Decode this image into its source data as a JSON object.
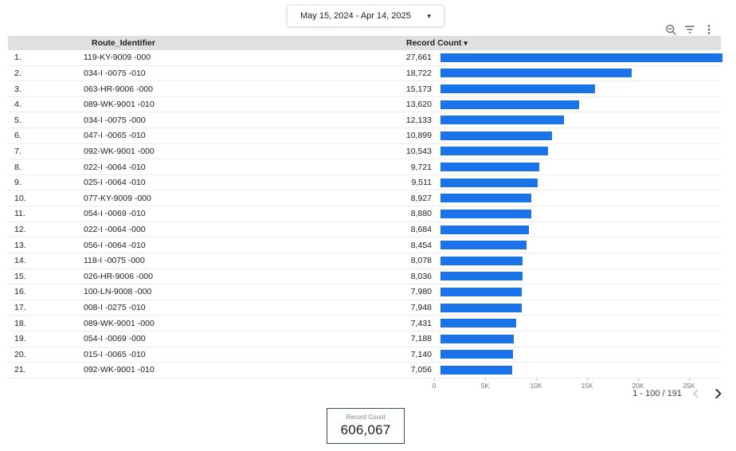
{
  "colors": {
    "bar": "#1a73e8",
    "table_header_bg": "#e0e0e0",
    "row_border": "#ececec",
    "text_primary": "#202124",
    "text_secondary": "#5f6368",
    "axis_text": "#757575",
    "scorecard_border": "#37474f"
  },
  "date_range_control": {
    "value": "May 15, 2024 - Apr 14, 2025",
    "caret": "▾"
  },
  "toolbar": {
    "icons": [
      "zoom-icon",
      "filter-icon",
      "more-options-icon"
    ]
  },
  "table": {
    "header": {
      "route": "Route_Identifier",
      "count": "Record Count",
      "sort_caret": "▾",
      "sort": "descending"
    },
    "rows": [
      {
        "index": "1.",
        "route": "119-KY-9009 -000",
        "count": "27,661",
        "value": 27661
      },
      {
        "index": "2.",
        "route": "034-I -0075 -010",
        "count": "18,722",
        "value": 18722
      },
      {
        "index": "3.",
        "route": "063-HR-9006 -000",
        "count": "15,173",
        "value": 15173
      },
      {
        "index": "4.",
        "route": "089-WK-9001 -010",
        "count": "13,620",
        "value": 13620
      },
      {
        "index": "5.",
        "route": "034-I -0075 -000",
        "count": "12,133",
        "value": 12133
      },
      {
        "index": "6.",
        "route": "047-I -0065 -010",
        "count": "10,899",
        "value": 10899
      },
      {
        "index": "7.",
        "route": "092-WK-9001 -000",
        "count": "10,543",
        "value": 10543
      },
      {
        "index": "8.",
        "route": "022-I -0064 -010",
        "count": "9,721",
        "value": 9721
      },
      {
        "index": "9.",
        "route": "025-I -0064 -010",
        "count": "9,511",
        "value": 9511
      },
      {
        "index": "10.",
        "route": "077-KY-9009 -000",
        "count": "8,927",
        "value": 8927
      },
      {
        "index": "11.",
        "route": "054-I -0069 -010",
        "count": "8,880",
        "value": 8880
      },
      {
        "index": "12.",
        "route": "022-I -0064 -000",
        "count": "8,684",
        "value": 8684
      },
      {
        "index": "13.",
        "route": "056-I -0064 -010",
        "count": "8,454",
        "value": 8454
      },
      {
        "index": "14.",
        "route": "118-I -0075 -000",
        "count": "8,078",
        "value": 8078
      },
      {
        "index": "15.",
        "route": "026-HR-9006 -000",
        "count": "8,036",
        "value": 8036
      },
      {
        "index": "16.",
        "route": "100-LN-9008 -000",
        "count": "7,980",
        "value": 7980
      },
      {
        "index": "17.",
        "route": "008-I -0275 -010",
        "count": "7,948",
        "value": 7948
      },
      {
        "index": "18.",
        "route": "089-WK-9001 -000",
        "count": "7,431",
        "value": 7431
      },
      {
        "index": "19.",
        "route": "054-I -0069 -000",
        "count": "7,188",
        "value": 7188
      },
      {
        "index": "20.",
        "route": "015-I -0065 -010",
        "count": "7,140",
        "value": 7140
      },
      {
        "index": "21.",
        "route": "092-WK-9001 -010",
        "count": "7,056",
        "value": 7056
      }
    ]
  },
  "chart_data": {
    "type": "bar",
    "orientation": "horizontal",
    "title": "",
    "xlabel": "",
    "ylabel": "Route_Identifier",
    "categories": [
      "119-KY-9009 -000",
      "034-I -0075 -010",
      "063-HR-9006 -000",
      "089-WK-9001 -010",
      "034-I -0075 -000",
      "047-I -0065 -010",
      "092-WK-9001 -000",
      "022-I -0064 -010",
      "025-I -0064 -010",
      "077-KY-9009 -000",
      "054-I -0069 -010",
      "022-I -0064 -000",
      "056-I -0064 -010",
      "118-I -0075 -000",
      "026-HR-9006 -000",
      "100-LN-9008 -000",
      "008-I -0275 -010",
      "089-WK-9001 -000",
      "054-I -0069 -000",
      "015-I -0065 -010",
      "092-WK-9001 -010"
    ],
    "values": [
      27661,
      18722,
      15173,
      13620,
      12133,
      10899,
      10543,
      9721,
      9511,
      8927,
      8880,
      8684,
      8454,
      8078,
      8036,
      7980,
      7948,
      7431,
      7188,
      7140,
      7056
    ],
    "value_labels": [
      "27,661",
      "18,722",
      "15,173",
      "13,620",
      "12,133",
      "10,899",
      "10,543",
      "9,721",
      "9,511",
      "8,927",
      "8,880",
      "8,684",
      "8,454",
      "8,078",
      "8,036",
      "7,980",
      "7,948",
      "7,431",
      "7,188",
      "7,140",
      "7,056"
    ],
    "x_ticks": [
      "0",
      "5K",
      "10K",
      "15K",
      "20K",
      "25K"
    ],
    "xlim": [
      0,
      28125
    ],
    "bar_color": "#1a73e8",
    "legend": "none",
    "sorted_by": "Record Count descending"
  },
  "pagination": {
    "label": "1 - 100 / 191"
  },
  "scorecard": {
    "label": "Record Count",
    "value": "606,067"
  }
}
